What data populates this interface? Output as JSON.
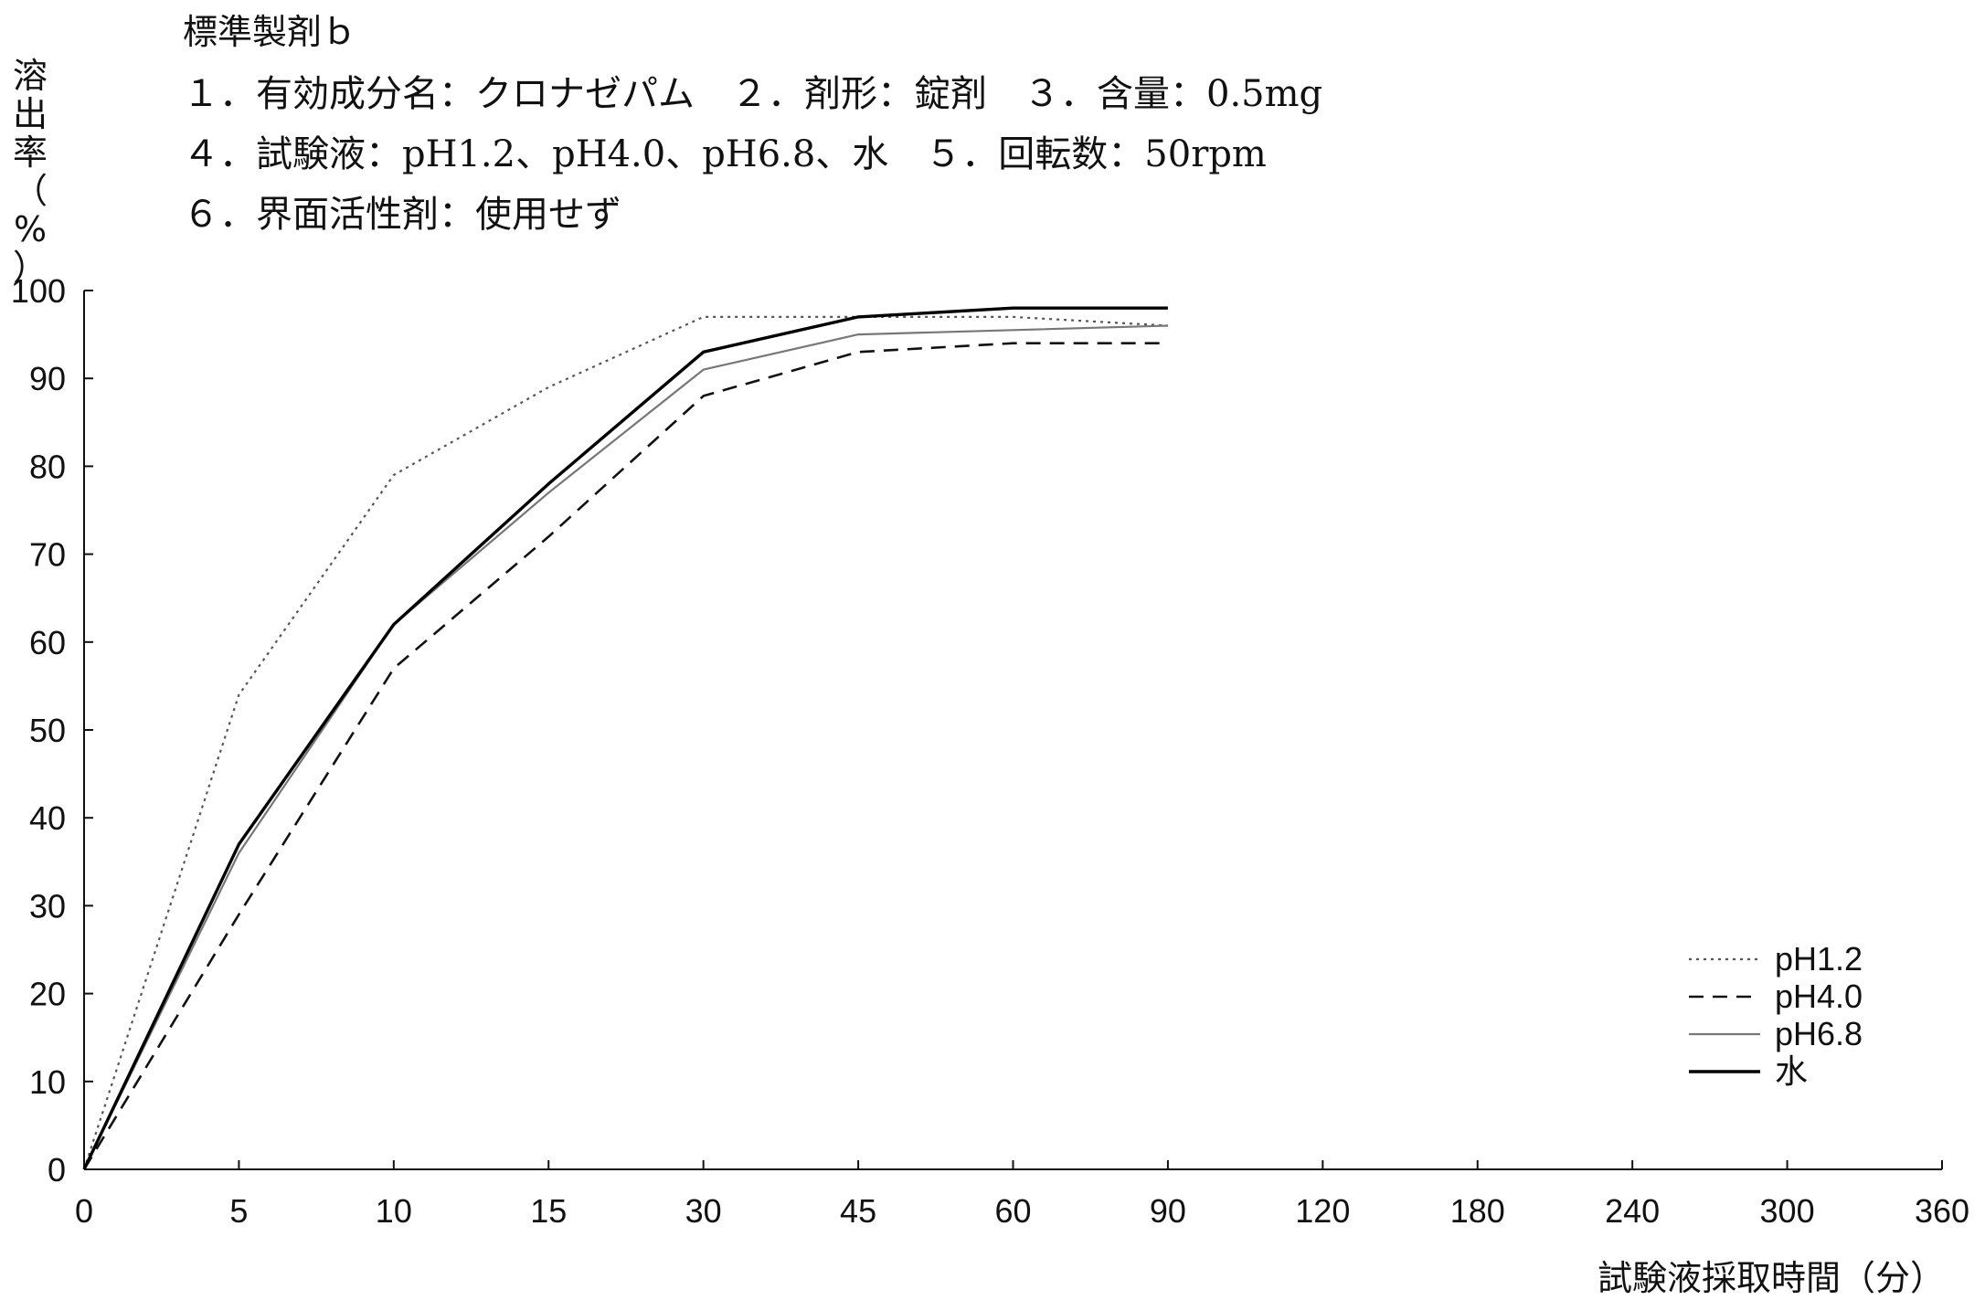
{
  "info": {
    "title": "標準製剤ｂ",
    "line1": "１．有効成分名：クロナゼパム　２．剤形：錠剤　３．含量：0.5mg",
    "line2": "４．試験液：pH1.2、pH4.0、pH6.8、水　５．回転数：50rpm",
    "line3": "６．界面活性剤：使用せず"
  },
  "chart_data": {
    "type": "line",
    "ylabel": "溶出率（%）",
    "ylabel_chars": [
      "溶",
      "出",
      "率",
      "（",
      "%",
      "）"
    ],
    "xlabel": "試験液採取時間（分）",
    "x_ticks": [
      "0",
      "5",
      "10",
      "15",
      "30",
      "45",
      "60",
      "90",
      "120",
      "180",
      "240",
      "300",
      "360"
    ],
    "y_ticks": [
      "0",
      "10",
      "20",
      "30",
      "40",
      "50",
      "60",
      "70",
      "80",
      "90",
      "100"
    ],
    "ylim": [
      0,
      100
    ],
    "x_scale": "categorical, equally spaced ticks",
    "grid": false,
    "legend_position": "bottom-right",
    "x": [
      "0",
      "5",
      "10",
      "15",
      "30",
      "45",
      "60",
      "90"
    ],
    "series": [
      {
        "name": "pH1.2",
        "style": "dotted",
        "color": "#555555",
        "values": [
          0,
          54,
          79,
          89,
          97,
          97,
          97,
          96
        ]
      },
      {
        "name": "pH4.0",
        "style": "dashed",
        "color": "#111111",
        "values": [
          0,
          29,
          57,
          72,
          88,
          93,
          94,
          94
        ]
      },
      {
        "name": "pH6.8",
        "style": "thin-solid",
        "color": "#777777",
        "values": [
          0,
          36,
          62,
          77,
          91,
          95,
          95.5,
          96
        ]
      },
      {
        "name": "水",
        "style": "thick-solid",
        "color": "#000000",
        "values": [
          0,
          37,
          62,
          78,
          93,
          97,
          98,
          98
        ]
      }
    ]
  }
}
